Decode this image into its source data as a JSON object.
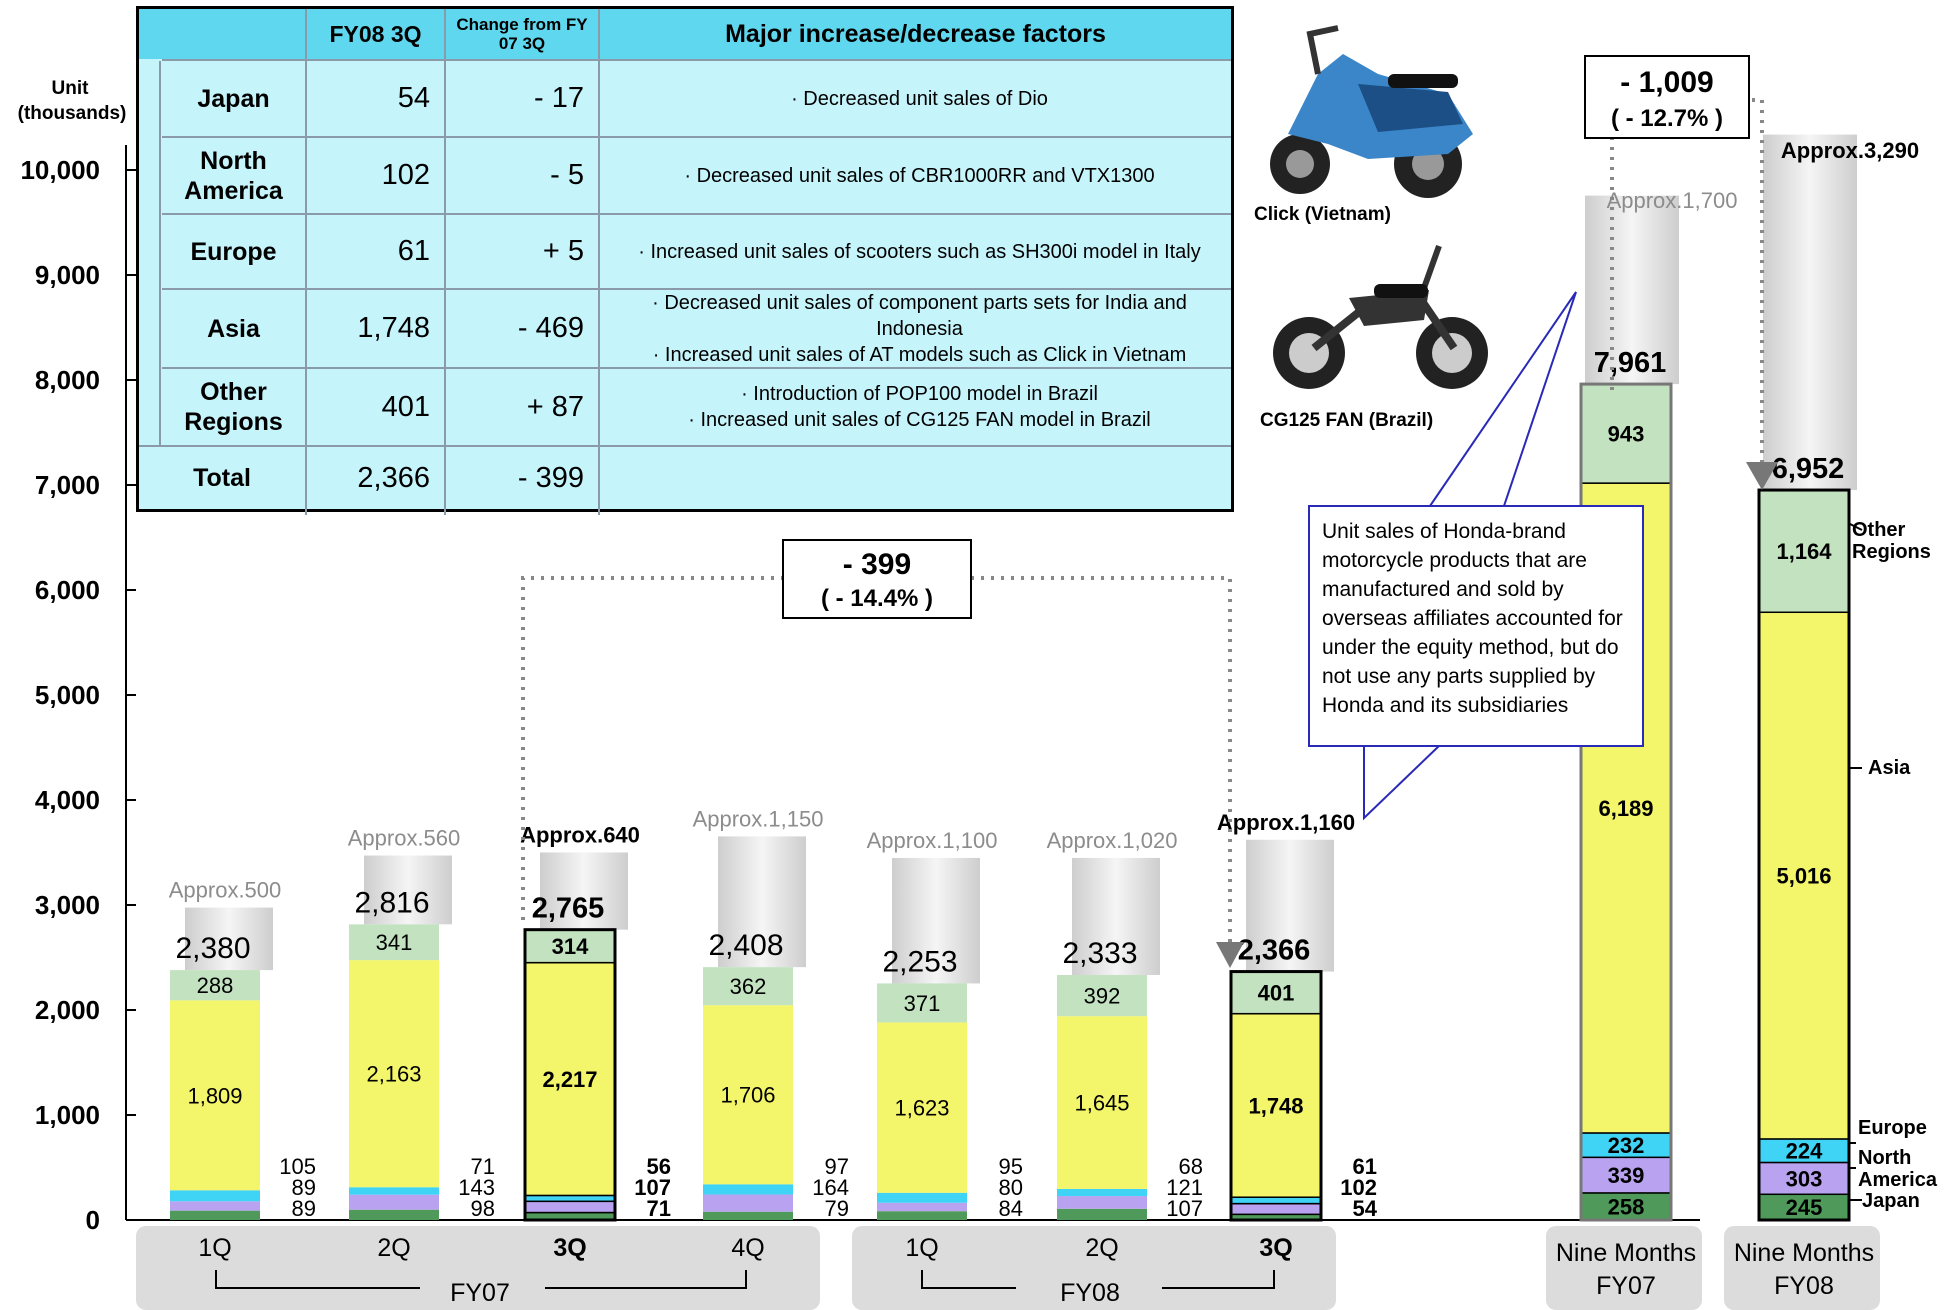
{
  "table": {
    "headers": {
      "fy08": "FY08 3Q",
      "change": "Change from FY 07 3Q",
      "factors": "Major increase/decrease factors"
    },
    "rows": [
      {
        "region": "Japan",
        "fy08": "54",
        "change": "- 17",
        "factors": [
          "· Decreased unit sales of Dio"
        ]
      },
      {
        "region": "North America",
        "fy08": "102",
        "change": "- 5",
        "factors": [
          "· Decreased unit sales of CBR1000RR and VTX1300"
        ]
      },
      {
        "region": "Europe",
        "fy08": "61",
        "change": "+ 5",
        "factors": [
          "· Increased unit sales of scooters such as SH300i model in Italy"
        ]
      },
      {
        "region": "Asia",
        "fy08": "1,748",
        "change": "- 469",
        "factors": [
          "· Decreased unit sales of component parts sets for India and",
          "Indonesia",
          "· Increased unit sales of AT models such as Click in Vietnam"
        ]
      },
      {
        "region": "Other Regions",
        "fy08": "401",
        "change": "+ 87",
        "factors": [
          "· Introduction of POP100 model in Brazil",
          "· Increased unit sales of CG125 FAN model  in Brazil"
        ]
      },
      {
        "region": "Total",
        "fy08": "2,366",
        "change": "- 399",
        "factors": []
      }
    ]
  },
  "photos": [
    {
      "caption": "Click (Vietnam)",
      "icon": "scooter-photo"
    },
    {
      "caption": "CG125 FAN (Brazil)",
      "icon": "motorcycle-photo"
    }
  ],
  "callout_text": "Unit sales of Honda-brand motorcycle products that are manufactured and sold by overseas affiliates accounted for under the equity method, but do not use any parts supplied by Honda and its subsidiaries",
  "chart_data": {
    "type": "bar",
    "stacked": true,
    "ylabel": "Unit (thousands)",
    "ylim": [
      0,
      10000
    ],
    "yticks": [
      "0",
      "1,000",
      "2,000",
      "3,000",
      "4,000",
      "5,000",
      "6,000",
      "7,000",
      "8,000",
      "9,000",
      "10,000"
    ],
    "colors": {
      "japan": "#4f9a5a",
      "north_america": "#b9a3f0",
      "europe": "#3fd3f5",
      "asia": "#f3f56a",
      "other": "#c2e2c0",
      "approx": "#d4d4d4",
      "approx_text": "#8c8c8c"
    },
    "categories": [
      "1Q",
      "2Q",
      "3Q",
      "4Q",
      "1Q",
      "2Q",
      "3Q",
      "Nine Months FY07",
      "Nine Months FY08"
    ],
    "group_labels": [
      "FY07",
      "FY08"
    ],
    "series": [
      {
        "name": "Japan",
        "values": [
          89,
          98,
          71,
          79,
          84,
          107,
          54,
          258,
          245
        ]
      },
      {
        "name": "North America",
        "values": [
          89,
          143,
          107,
          164,
          80,
          121,
          102,
          339,
          303
        ]
      },
      {
        "name": "Europe",
        "values": [
          105,
          71,
          56,
          97,
          95,
          68,
          61,
          232,
          224
        ]
      },
      {
        "name": "Asia",
        "values": [
          1809,
          2163,
          2217,
          1706,
          1623,
          1645,
          1748,
          6189,
          5016
        ]
      },
      {
        "name": "Other Regions",
        "values": [
          288,
          341,
          314,
          362,
          371,
          392,
          401,
          943,
          1164
        ]
      }
    ],
    "totals": [
      "2,380",
      "2,816",
      "2,765",
      "2,408",
      "2,253",
      "2,333",
      "2,366",
      "7,961",
      "6,952"
    ],
    "approx_labels": [
      "Approx.500",
      "Approx.560",
      "Approx.640",
      "Approx.1,150",
      "Approx.1,100",
      "Approx.1,020",
      "Approx.1,160",
      "Approx.1,700",
      "Approx.3,290"
    ],
    "approx_values": [
      500,
      560,
      640,
      1150,
      1100,
      1020,
      1160,
      1700,
      3290
    ],
    "quarterly_change": {
      "value": "- 399",
      "percent": "( - 14.4% )"
    },
    "nine_month_change": {
      "value": "- 1,009",
      "percent": "( - 12.7% )"
    },
    "legend_right": [
      "Other Regions",
      "Asia",
      "Europe",
      "North America",
      "Japan"
    ]
  }
}
